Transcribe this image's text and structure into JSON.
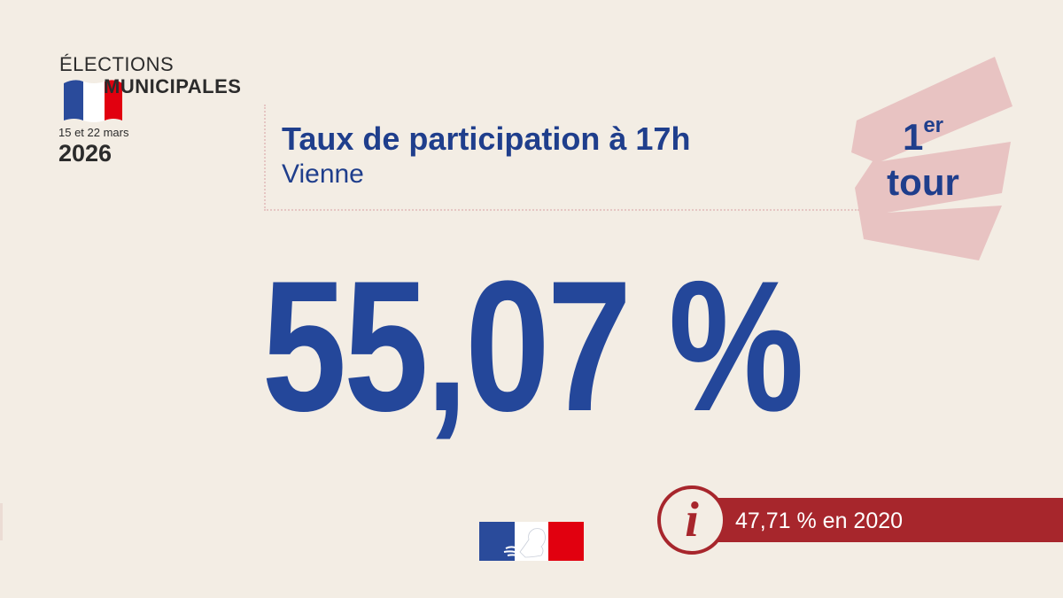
{
  "logo": {
    "line1": "ÉLECTIONS",
    "line2": "MUNICIPALES",
    "dates": "15 et 22 mars",
    "year": "2026",
    "flag_colors": [
      "#2a4b9b",
      "#ffffff",
      "#e1000f"
    ]
  },
  "header": {
    "title": "Taux de participation à 17h",
    "subtitle": "Vienne"
  },
  "badge": {
    "number": "1",
    "suffix": "er",
    "word": "tour",
    "background_color": "#e8c3c2"
  },
  "rate": {
    "value": "55,07 %"
  },
  "info": {
    "icon": "info-icon",
    "glyph": "i",
    "text": "47,71 % en 2020",
    "color": "#a7262c"
  },
  "marianne": {
    "icon": "republique-francaise-marianne-logo",
    "colors": [
      "#2a4b9b",
      "#ffffff",
      "#e1000f"
    ]
  },
  "colors": {
    "background": "#f3ede4",
    "primary_blue": "#24479a"
  }
}
